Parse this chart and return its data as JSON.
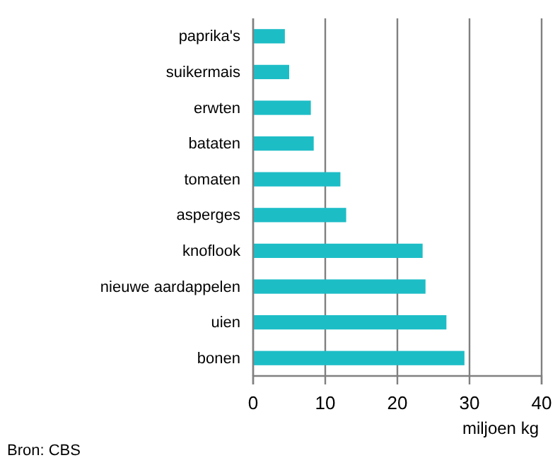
{
  "chart_data": {
    "type": "bar",
    "orientation": "horizontal",
    "categories": [
      "paprika's",
      "suikermais",
      "erwten",
      "bataten",
      "tomaten",
      "asperges",
      "knoflook",
      "nieuwe aardappelen",
      "uien",
      "bonen"
    ],
    "values": [
      4.4,
      5.0,
      8.0,
      8.4,
      12.1,
      12.9,
      23.5,
      23.9,
      26.8,
      29.3
    ],
    "color": "#1dbdc6",
    "xlim": [
      0,
      40
    ],
    "xticks": [
      0,
      10,
      20,
      30,
      40
    ],
    "grid": "x",
    "xlabel": "miljoen kg",
    "annotations": [
      "Bron: CBS"
    ]
  }
}
